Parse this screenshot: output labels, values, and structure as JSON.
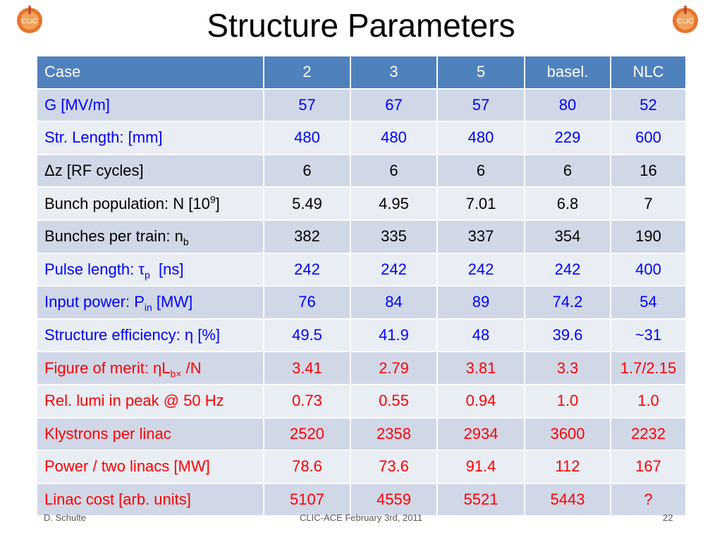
{
  "title": "Structure Parameters",
  "logo_text": "CLIC",
  "table": {
    "headers": [
      "Case",
      "2",
      "3",
      "5",
      "basel.",
      "NLC"
    ],
    "rows": [
      {
        "label": "G [MV/m]",
        "values": [
          "57",
          "67",
          "57",
          "80",
          "52"
        ],
        "color": "#0000ff"
      },
      {
        "label": "Str. Length:  [mm]",
        "values": [
          "480",
          "480",
          "480",
          "229",
          "600"
        ],
        "color": "#0000ff"
      },
      {
        "label": "Δz  [RF cycles]",
        "values": [
          "6",
          "6",
          "6",
          "6",
          "16"
        ],
        "color": "#000000"
      },
      {
        "label": "Bunch population: N [10",
        "label_sup": "9",
        "label_tail": "]",
        "values": [
          "5.49",
          "4.95",
          "7.01",
          "6.8",
          "7"
        ],
        "color": "#000000"
      },
      {
        "label": "Bunches per train: n",
        "label_sub": "b",
        "values": [
          "382",
          "335",
          "337",
          "354",
          "190"
        ],
        "color": "#000000"
      },
      {
        "label": "Pulse length: τ",
        "label_sub": "p",
        "label_tail": "  [ns]",
        "values": [
          "242",
          "242",
          "242",
          "242",
          "400"
        ],
        "color": "#0000ff"
      },
      {
        "label": "Input power: P",
        "label_sub": "in",
        "label_tail": " [MW]",
        "values": [
          "76",
          "84",
          "89",
          "74.2",
          "54"
        ],
        "color": "#0000ff"
      },
      {
        "label": "Structure efficiency: η [%]",
        "values": [
          "49.5",
          "41.9",
          "48",
          "39.6",
          "~31"
        ],
        "color": "#0000ff"
      },
      {
        "label": "Figure of merit: ηL",
        "label_sub": "b×",
        "label_tail": " /N",
        "values": [
          "3.41",
          "2.79",
          "3.81",
          "3.3",
          "1.7/2.15"
        ],
        "color": "#ff0000"
      },
      {
        "label": "Rel. lumi in peak @ 50 Hz",
        "values": [
          "0.73",
          "0.55",
          "0.94",
          "1.0",
          "1.0"
        ],
        "color": "#ff0000"
      },
      {
        "label": "Klystrons per linac",
        "values": [
          "2520",
          "2358",
          "2934",
          "3600",
          "2232"
        ],
        "color": "#ff0000"
      },
      {
        "label": "Power / two linacs [MW]",
        "values": [
          "78.6",
          "73.6",
          "91.4",
          "112",
          "167"
        ],
        "color": "#ff0000"
      },
      {
        "label": "Linac cost [arb. units]",
        "values": [
          "5107",
          "4559",
          "5521",
          "5443",
          "?"
        ],
        "color": "#ff0000"
      }
    ]
  },
  "footer": {
    "author": "D. Schulte",
    "event": "CLIC-ACE February 3rd, 2011",
    "page": "22"
  },
  "colors": {
    "header_bg": "#4f81bd",
    "row_odd": "#d0d8e8",
    "row_even": "#e9edf4",
    "logo_orange": "#e8742a"
  }
}
